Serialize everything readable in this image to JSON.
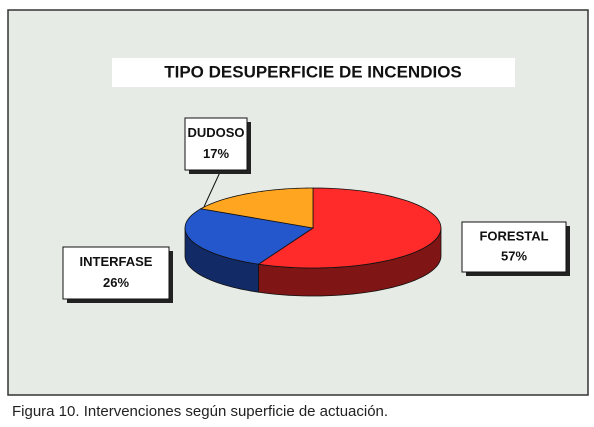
{
  "chart_data": {
    "type": "pie3d",
    "title": "TIPO DESUPERFICIE DE INCENDIOS",
    "categories": [
      "FORESTAL",
      "INTERFASE",
      "DUDOSO"
    ],
    "values": [
      57,
      26,
      17
    ],
    "value_labels": [
      "57%",
      "26%",
      "17%"
    ],
    "colors": [
      "#ff2a2a",
      "#2456cc",
      "#ffa51f"
    ],
    "caption": "Figura 10. Intervenciones según superficie de actuación."
  }
}
